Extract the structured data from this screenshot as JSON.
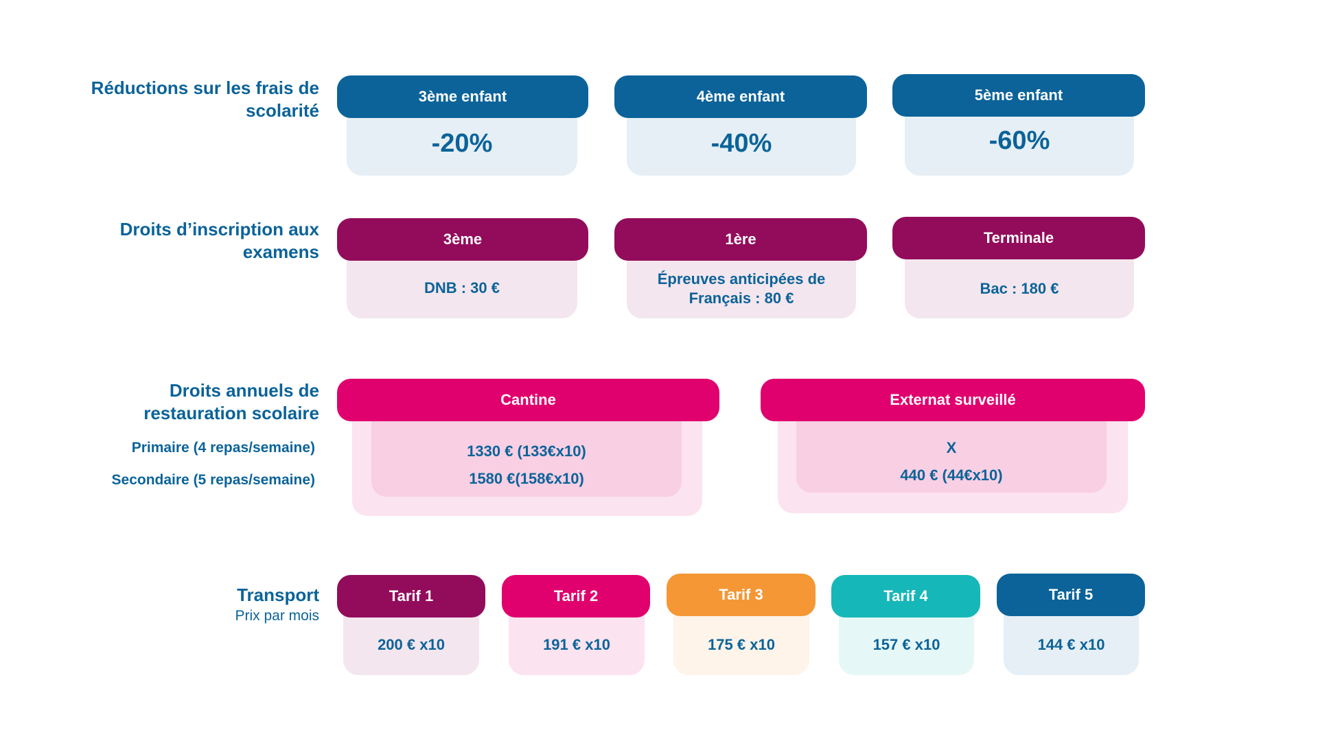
{
  "reductions": {
    "label": "Réductions sur les frais de scolarité",
    "cards": [
      {
        "title": "3ème enfant",
        "value": "-20%"
      },
      {
        "title": "4ème enfant",
        "value": "-40%"
      },
      {
        "title": "5ème enfant",
        "value": "-60%"
      }
    ]
  },
  "exams": {
    "label": "Droits d’inscription aux examens",
    "cards": [
      {
        "title": "3ème",
        "value": "DNB : 30 €"
      },
      {
        "title": "1ère",
        "value": "Épreuves anticipées de Français : 80 €"
      },
      {
        "title": "Terminale",
        "value": "Bac : 180 €"
      }
    ]
  },
  "restauration": {
    "label": "Droits annuels de restauration scolaire",
    "primaire_label": "Primaire (4 repas/semaine)",
    "secondaire_label": "Secondaire (5 repas/semaine)",
    "cantine": {
      "title": "Cantine",
      "primaire": "1330 € (133€x10)",
      "secondaire": "1580 €(158€x10)"
    },
    "externat": {
      "title": "Externat surveillé",
      "primaire": "X",
      "secondaire": "440 € (44€x10)"
    }
  },
  "transport": {
    "label": "Transport",
    "sublabel": "Prix par mois",
    "tarifs": [
      {
        "title": "Tarif 1",
        "value": "200 € x10",
        "color": "#920c5b"
      },
      {
        "title": "Tarif 2",
        "value": "191 € x10",
        "color": "#e0006e"
      },
      {
        "title": "Tarif 3",
        "value": "175 € x10",
        "color": "#f49734"
      },
      {
        "title": "Tarif 4",
        "value": "157 € x10",
        "color": "#16b7b8"
      },
      {
        "title": "Tarif 5",
        "value": "144 € x10",
        "color": "#0b6399"
      }
    ]
  }
}
